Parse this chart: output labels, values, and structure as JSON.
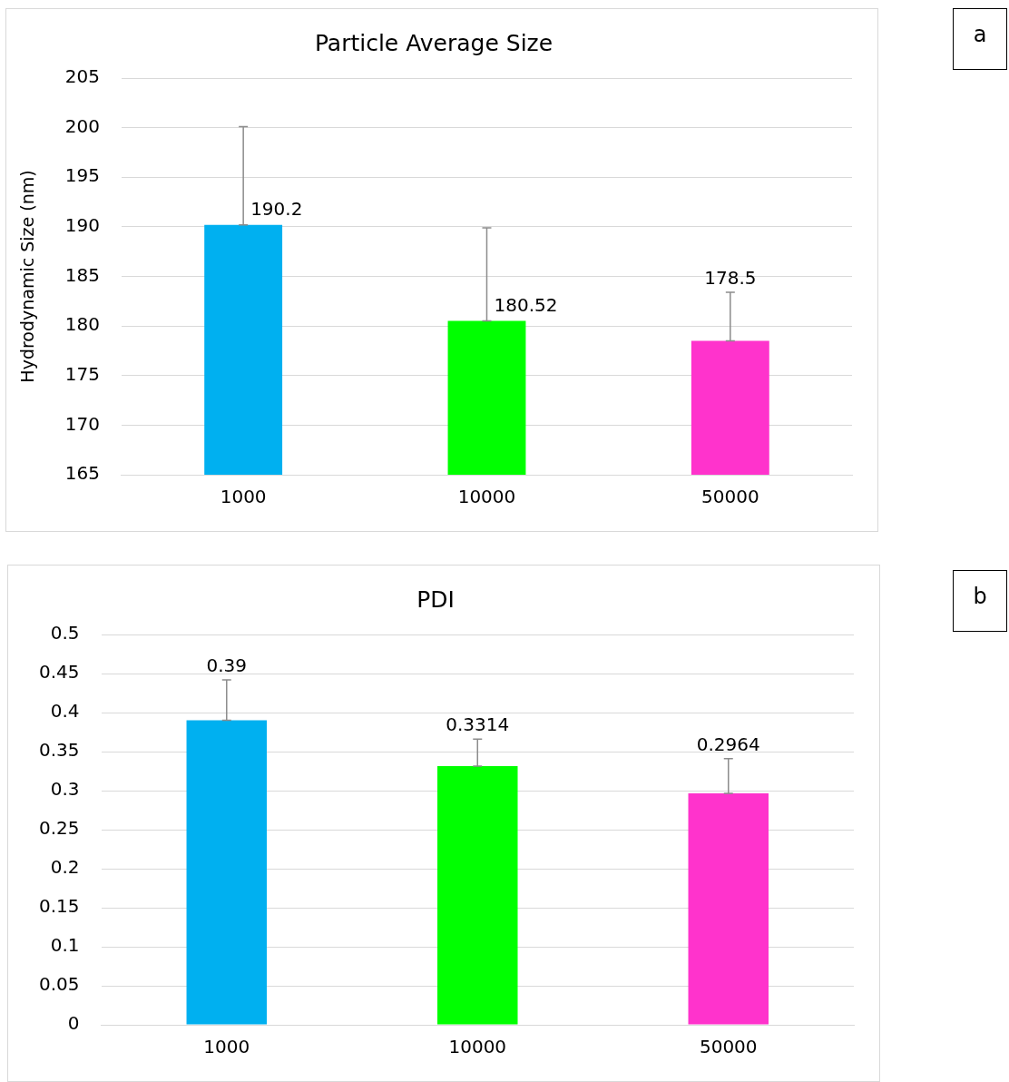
{
  "chart_data": [
    {
      "type": "bar",
      "title": "Particle Average Size",
      "ylabel": "Hydrodynamic Size (nm)",
      "annotations": [
        "a"
      ],
      "categories": [
        "1000",
        "10000",
        "50000"
      ],
      "values": [
        190.2,
        180.52,
        178.5
      ],
      "colors": [
        "#00b0f0",
        "#00ff00",
        "#ff33cc"
      ],
      "errors": [
        [
          190.2,
          200.1
        ],
        [
          180.52,
          189.9
        ],
        [
          178.5,
          183.4
        ]
      ],
      "ylim": [
        165,
        205
      ],
      "yticks": [
        165,
        170,
        175,
        180,
        185,
        190,
        195,
        200,
        205
      ],
      "grid": "y",
      "data_labels": true,
      "legend": false
    },
    {
      "type": "bar",
      "title": "PDI",
      "annotations": [
        "b"
      ],
      "categories": [
        "1000",
        "10000",
        "50000"
      ],
      "values": [
        0.39,
        0.3314,
        0.2964
      ],
      "colors": [
        "#00b0f0",
        "#00ff00",
        "#ff33cc"
      ],
      "errors": [
        [
          0.39,
          0.442
        ],
        [
          0.3314,
          0.366
        ],
        [
          0.2964,
          0.341
        ]
      ],
      "ylim": [
        0,
        0.5
      ],
      "yticks": [
        0,
        0.05,
        0.1,
        0.15,
        0.2,
        0.25,
        0.3,
        0.35,
        0.4,
        0.45,
        0.5
      ],
      "grid": "y",
      "data_labels": true,
      "legend": false
    }
  ]
}
